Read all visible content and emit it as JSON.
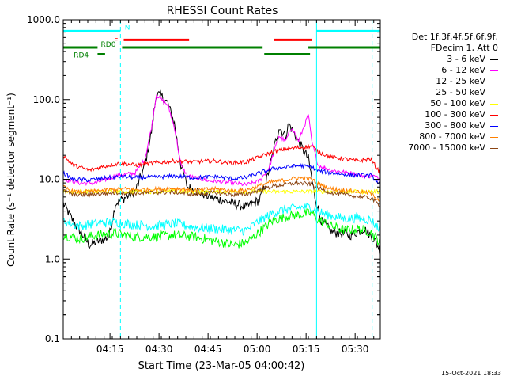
{
  "chart_data": {
    "type": "line",
    "title": "RHESSI Count Rates",
    "xlabel": "Start Time (23-Mar-05 04:00:42)",
    "ylabel": "Count Rate (s⁻¹ detector segment⁻¹)",
    "y_scale": "log",
    "ylim": [
      0.1,
      1000
    ],
    "xlim_minutes": [
      0,
      97
    ],
    "x_ticks": [
      {
        "label": "04:15",
        "min": 14.3
      },
      {
        "label": "04:30",
        "min": 29.3
      },
      {
        "label": "04:45",
        "min": 44.3
      },
      {
        "label": "05:00",
        "min": 59.3
      },
      {
        "label": "05:15",
        "min": 74.3
      },
      {
        "label": "05:30",
        "min": 89.3
      }
    ],
    "y_ticks": [
      {
        "label": "1000.0",
        "v": 1000
      },
      {
        "label": "100.0",
        "v": 100
      },
      {
        "label": "10.0",
        "v": 10
      },
      {
        "label": "1.0",
        "v": 1
      },
      {
        "label": "0.1",
        "v": 0.1
      }
    ],
    "grid": false,
    "legend_header": [
      "Det 1f,3f,4f,5f,6f,9f,",
      "FDecim 1, Att 0"
    ],
    "series": [
      {
        "name": "3 - 6 keV",
        "color": "#000000",
        "points": [
          [
            0,
            5
          ],
          [
            3,
            3
          ],
          [
            8,
            1.5
          ],
          [
            14,
            1.9
          ],
          [
            16,
            5
          ],
          [
            22,
            7
          ],
          [
            25,
            15
          ],
          [
            27,
            40
          ],
          [
            28.5,
            120
          ],
          [
            30,
            110
          ],
          [
            32,
            90
          ],
          [
            34,
            50
          ],
          [
            36,
            15
          ],
          [
            38,
            8
          ],
          [
            45,
            6
          ],
          [
            52,
            5
          ],
          [
            56,
            4.5
          ],
          [
            60,
            5.5
          ],
          [
            62,
            9
          ],
          [
            64,
            20
          ],
          [
            66,
            45
          ],
          [
            68,
            35
          ],
          [
            69,
            50
          ],
          [
            71,
            35
          ],
          [
            73,
            25
          ],
          [
            75,
            18
          ],
          [
            77,
            6
          ],
          [
            79,
            3
          ],
          [
            82,
            2.2
          ],
          [
            88,
            2.0
          ],
          [
            92,
            2.4
          ],
          [
            95,
            1.8
          ],
          [
            97,
            1.3
          ]
        ]
      },
      {
        "name": "6 - 12 keV",
        "color": "#ff00ff",
        "points": [
          [
            0,
            10
          ],
          [
            5,
            9
          ],
          [
            10,
            9
          ],
          [
            16,
            11
          ],
          [
            22,
            12
          ],
          [
            25,
            18
          ],
          [
            27,
            45
          ],
          [
            28.5,
            115
          ],
          [
            30,
            100
          ],
          [
            32,
            85
          ],
          [
            34,
            45
          ],
          [
            36,
            15
          ],
          [
            38,
            11
          ],
          [
            45,
            9.5
          ],
          [
            52,
            9
          ],
          [
            56,
            8.5
          ],
          [
            60,
            9.5
          ],
          [
            63,
            14
          ],
          [
            66,
            35
          ],
          [
            68,
            30
          ],
          [
            70,
            45
          ],
          [
            72,
            30
          ],
          [
            74,
            50
          ],
          [
            75,
            65
          ],
          [
            76,
            30
          ],
          [
            78,
            15
          ],
          [
            82,
            13
          ],
          [
            88,
            12
          ],
          [
            92,
            11
          ],
          [
            95,
            11
          ],
          [
            97,
            10
          ]
        ]
      },
      {
        "name": "12 - 25 keV",
        "color": "#00ff00",
        "points": [
          [
            0,
            2
          ],
          [
            5,
            1.8
          ],
          [
            10,
            2
          ],
          [
            16,
            2.1
          ],
          [
            22,
            1.9
          ],
          [
            28,
            1.9
          ],
          [
            34,
            2
          ],
          [
            40,
            1.9
          ],
          [
            46,
            1.7
          ],
          [
            52,
            1.5
          ],
          [
            56,
            1.6
          ],
          [
            60,
            2.2
          ],
          [
            64,
            3
          ],
          [
            68,
            3.4
          ],
          [
            72,
            3.6
          ],
          [
            76,
            3.8
          ],
          [
            78,
            3.1
          ],
          [
            82,
            2.6
          ],
          [
            86,
            2.3
          ],
          [
            90,
            2.4
          ],
          [
            94,
            2.2
          ],
          [
            97,
            1.6
          ]
        ]
      },
      {
        "name": "25 - 50 keV",
        "color": "#00ffff",
        "points": [
          [
            0,
            3
          ],
          [
            5,
            2.6
          ],
          [
            10,
            2.8
          ],
          [
            16,
            2.9
          ],
          [
            22,
            2.7
          ],
          [
            28,
            2.6
          ],
          [
            34,
            2.8
          ],
          [
            40,
            2.5
          ],
          [
            46,
            2.4
          ],
          [
            52,
            2.3
          ],
          [
            56,
            2.3
          ],
          [
            60,
            3
          ],
          [
            64,
            3.8
          ],
          [
            68,
            4.2
          ],
          [
            72,
            4.4
          ],
          [
            76,
            4.5
          ],
          [
            78,
            3.9
          ],
          [
            82,
            3.5
          ],
          [
            86,
            3.2
          ],
          [
            90,
            3.3
          ],
          [
            94,
            3.1
          ],
          [
            97,
            2.3
          ]
        ]
      },
      {
        "name": "50 - 100 keV",
        "color": "#ffff00",
        "points": [
          [
            0,
            7
          ],
          [
            97,
            7
          ]
        ]
      },
      {
        "name": "100 - 300 keV",
        "color": "#ff0000",
        "points": [
          [
            0,
            20
          ],
          [
            3,
            15
          ],
          [
            8,
            13
          ],
          [
            14,
            15
          ],
          [
            18,
            16
          ],
          [
            22,
            15
          ],
          [
            28,
            16
          ],
          [
            34,
            17
          ],
          [
            40,
            16.5
          ],
          [
            46,
            17
          ],
          [
            52,
            16
          ],
          [
            56,
            16.5
          ],
          [
            60,
            19
          ],
          [
            64,
            22
          ],
          [
            68,
            24
          ],
          [
            72,
            25
          ],
          [
            76,
            26
          ],
          [
            78,
            22
          ],
          [
            82,
            19
          ],
          [
            86,
            18
          ],
          [
            90,
            17
          ],
          [
            94,
            18
          ],
          [
            97,
            12
          ]
        ]
      },
      {
        "name": "300 - 800 keV",
        "color": "#0000ff",
        "points": [
          [
            0,
            12
          ],
          [
            3,
            10
          ],
          [
            8,
            9.8
          ],
          [
            14,
            10.5
          ],
          [
            18,
            10.8
          ],
          [
            22,
            10.5
          ],
          [
            28,
            10.6
          ],
          [
            34,
            11
          ],
          [
            40,
            10.5
          ],
          [
            46,
            10.8
          ],
          [
            52,
            10.2
          ],
          [
            56,
            10.5
          ],
          [
            60,
            12
          ],
          [
            64,
            13.5
          ],
          [
            68,
            14.2
          ],
          [
            72,
            14.8
          ],
          [
            76,
            14.2
          ],
          [
            78,
            12.8
          ],
          [
            82,
            12
          ],
          [
            86,
            11.5
          ],
          [
            90,
            11.2
          ],
          [
            94,
            11.3
          ],
          [
            97,
            8.5
          ]
        ]
      },
      {
        "name": "800 - 7000 keV",
        "color": "#ff8000",
        "points": [
          [
            0,
            8
          ],
          [
            3,
            7
          ],
          [
            8,
            7
          ],
          [
            14,
            7.4
          ],
          [
            18,
            7.6
          ],
          [
            22,
            7.4
          ],
          [
            28,
            7.5
          ],
          [
            34,
            7.7
          ],
          [
            40,
            7.3
          ],
          [
            46,
            7.6
          ],
          [
            52,
            7.2
          ],
          [
            56,
            7.3
          ],
          [
            60,
            8.3
          ],
          [
            64,
            9.3
          ],
          [
            68,
            9.8
          ],
          [
            72,
            10.5
          ],
          [
            76,
            10
          ],
          [
            78,
            8.8
          ],
          [
            82,
            7.6
          ],
          [
            86,
            7.3
          ],
          [
            90,
            7
          ],
          [
            94,
            6.7
          ],
          [
            97,
            5.4
          ]
        ]
      },
      {
        "name": "7000 - 15000 keV",
        "color": "#8b4513",
        "points": [
          [
            0,
            7.2
          ],
          [
            3,
            6.4
          ],
          [
            8,
            6.4
          ],
          [
            14,
            6.7
          ],
          [
            18,
            6.8
          ],
          [
            22,
            6.7
          ],
          [
            28,
            6.8
          ],
          [
            34,
            6.9
          ],
          [
            40,
            6.5
          ],
          [
            46,
            6.8
          ],
          [
            52,
            6.4
          ],
          [
            56,
            6.5
          ],
          [
            60,
            7.3
          ],
          [
            64,
            8.2
          ],
          [
            68,
            8.6
          ],
          [
            72,
            9
          ],
          [
            76,
            8.6
          ],
          [
            78,
            7.7
          ],
          [
            82,
            6.8
          ],
          [
            86,
            6.4
          ],
          [
            90,
            6.1
          ],
          [
            94,
            5.8
          ],
          [
            97,
            4.7
          ]
        ]
      }
    ],
    "vertical_lines": [
      {
        "min": 0,
        "color": "#00ffff",
        "style": "solid"
      },
      {
        "min": 17.5,
        "color": "#00ffff",
        "style": "dashed"
      },
      {
        "min": 77.5,
        "color": "#00ffff",
        "style": "solid"
      },
      {
        "min": 94.5,
        "color": "#00ffff",
        "style": "dashed"
      }
    ],
    "flag_bars": [
      {
        "label": "N",
        "color": "#00ffff",
        "v": 720,
        "segments": [
          [
            0,
            17.5
          ],
          [
            77.5,
            97
          ]
        ]
      },
      {
        "label": "F",
        "color": "#ff0000",
        "v": 560,
        "segments": [
          [
            18.5,
            38.5
          ],
          [
            64.5,
            76
          ]
        ]
      },
      {
        "label": "RD0",
        "color": "#008000",
        "v": 450,
        "segments": [
          [
            0,
            10.5
          ],
          [
            18,
            61
          ],
          [
            75,
            97
          ]
        ]
      },
      {
        "label": "RD4",
        "color": "#008000",
        "v": 370,
        "segments": [
          [
            10.5,
            12.8
          ],
          [
            61.5,
            75.5
          ]
        ]
      }
    ],
    "footer_timestamp": "15-Oct-2021 18:33"
  }
}
